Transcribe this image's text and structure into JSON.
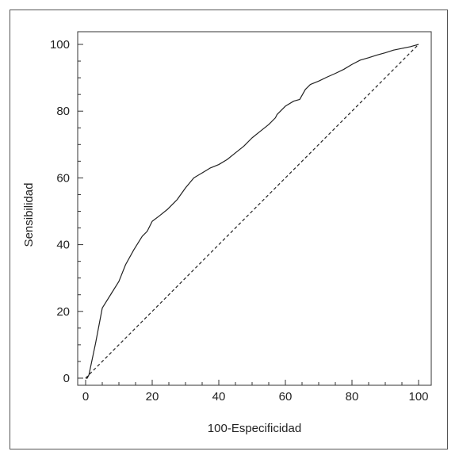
{
  "chart_data": {
    "type": "line",
    "title": "",
    "xlabel": "100-Especificidad",
    "ylabel": "Sensibilidad",
    "xlim": [
      0,
      100
    ],
    "ylim": [
      0,
      100
    ],
    "x_ticks": [
      0,
      20,
      40,
      60,
      80,
      100
    ],
    "y_ticks": [
      0,
      20,
      40,
      60,
      80,
      100
    ],
    "x_tick_labels": [
      "0",
      "20",
      "40",
      "60",
      "80",
      "100"
    ],
    "y_tick_labels": [
      "0",
      "20",
      "40",
      "60",
      "80",
      "100"
    ],
    "grid": false,
    "series": [
      {
        "style": "solid",
        "color": "#222222",
        "x": [
          0,
          0.5,
          1,
          3,
          5,
          7.5,
          10,
          12,
          14.5,
          17,
          18.5,
          20,
          22,
          24.5,
          27.5,
          30,
          32.5,
          35,
          37.5,
          40,
          42.5,
          45,
          47.5,
          50,
          52.5,
          55,
          57,
          57.5,
          60,
          62.5,
          64.3,
          66,
          67.5,
          70,
          72.5,
          75,
          77.5,
          80,
          82.5,
          85,
          87.5,
          90,
          92.5,
          95,
          97.5,
          100
        ],
        "y": [
          0,
          0,
          1,
          10.5,
          21,
          25,
          29,
          34,
          38.5,
          42.5,
          44,
          47,
          48.5,
          50.5,
          53.5,
          57,
          60,
          61.5,
          63,
          64,
          65.5,
          67.5,
          69.5,
          72,
          74,
          76,
          78,
          79,
          81.5,
          83,
          83.5,
          86.5,
          88,
          89,
          90.2,
          91.3,
          92.5,
          94,
          95.3,
          96,
          96.8,
          97.5,
          98.3,
          98.8,
          99.3,
          100
        ]
      },
      {
        "style": "dashed",
        "color": "#222222",
        "x": [
          0,
          100
        ],
        "y": [
          0,
          100
        ]
      }
    ]
  }
}
